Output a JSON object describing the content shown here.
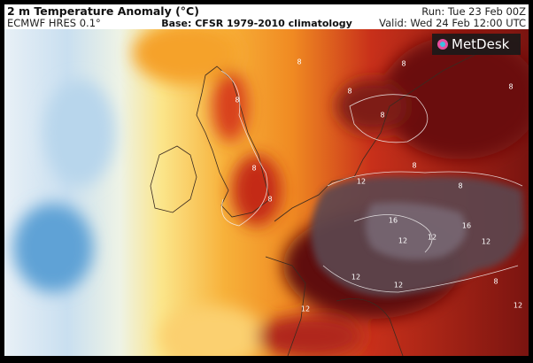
{
  "header": {
    "title": "2 m Temperature Anomaly (°C)",
    "model": "ECMWF HRES 0.1°",
    "base": "Base: CFSR 1979-2010 climatology",
    "run": "Run: Tue 23 Feb 00Z",
    "valid": "Valid: Wed 24 Feb 12:00 UTC"
  },
  "logo": "MetDesk",
  "map": {
    "contour_labels": [
      "8",
      "8",
      "8",
      "8",
      "8",
      "8",
      "8",
      "8",
      "8",
      "12",
      "12",
      "12",
      "12",
      "12",
      "12",
      "16",
      "16",
      "12",
      "8",
      "12",
      "8"
    ]
  }
}
